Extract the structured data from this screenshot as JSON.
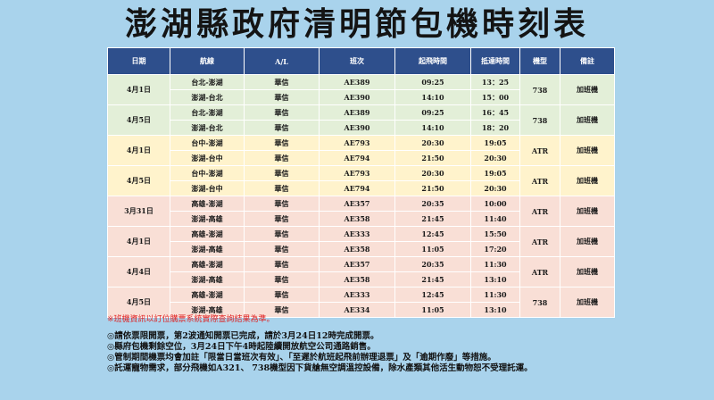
{
  "title": "澎湖縣政府清明節包機時刻表",
  "headers": [
    "日期",
    "航線",
    "A/L",
    "班次",
    "起飛時間",
    "抵達時間",
    "機型",
    "備註"
  ],
  "groups": [
    {
      "date": "4月1日",
      "type": "738",
      "remark": "加班機",
      "color": "green",
      "rows": [
        {
          "route": "台北-澎湖",
          "al": "華信",
          "flight": "AE389",
          "dep": "09:25",
          "arr": "13：25"
        },
        {
          "route": "澎湖-台北",
          "al": "華信",
          "flight": "AE390",
          "dep": "14:10",
          "arr": "15：00"
        }
      ]
    },
    {
      "date": "4月5日",
      "type": "738",
      "remark": "加班機",
      "color": "green",
      "rows": [
        {
          "route": "台北-澎湖",
          "al": "華信",
          "flight": "AE389",
          "dep": "09:25",
          "arr": "16：45"
        },
        {
          "route": "澎湖-台北",
          "al": "華信",
          "flight": "AE390",
          "dep": "14:10",
          "arr": "18：20"
        }
      ]
    },
    {
      "date": "4月1日",
      "type": "ATR",
      "remark": "加班機",
      "color": "yellow",
      "rows": [
        {
          "route": "台中-澎湖",
          "al": "華信",
          "flight": "AE793",
          "dep": "20:30",
          "arr": "19:05"
        },
        {
          "route": "澎湖-台中",
          "al": "華信",
          "flight": "AE794",
          "dep": "21:50",
          "arr": "20:30"
        }
      ]
    },
    {
      "date": "4月5日",
      "type": "ATR",
      "remark": "加班機",
      "color": "yellow",
      "rows": [
        {
          "route": "台中-澎湖",
          "al": "華信",
          "flight": "AE793",
          "dep": "20:30",
          "arr": "19:05"
        },
        {
          "route": "澎湖-台中",
          "al": "華信",
          "flight": "AE794",
          "dep": "21:50",
          "arr": "20:30"
        }
      ]
    },
    {
      "date": "3月31日",
      "type": "ATR",
      "remark": "加班機",
      "color": "pink",
      "rows": [
        {
          "route": "高雄-澎湖",
          "al": "華信",
          "flight": "AE357",
          "dep": "20:35",
          "arr": "10:00"
        },
        {
          "route": "澎湖-高雄",
          "al": "華信",
          "flight": "AE358",
          "dep": "21:45",
          "arr": "11:40"
        }
      ]
    },
    {
      "date": "4月1日",
      "type": "ATR",
      "remark": "加班機",
      "color": "pink",
      "rows": [
        {
          "route": "高雄-澎湖",
          "al": "華信",
          "flight": "AE333",
          "dep": "12:45",
          "arr": "15:50"
        },
        {
          "route": "澎湖-高雄",
          "al": "華信",
          "flight": "AE358",
          "dep": "11:05",
          "arr": "17:20"
        }
      ]
    },
    {
      "date": "4月4日",
      "type": "ATR",
      "remark": "加班機",
      "color": "pink",
      "rows": [
        {
          "route": "高雄-澎湖",
          "al": "華信",
          "flight": "AE357",
          "dep": "20:35",
          "arr": "11:30"
        },
        {
          "route": "澎湖-高雄",
          "al": "華信",
          "flight": "AE358",
          "dep": "21:45",
          "arr": "13:10"
        }
      ]
    },
    {
      "date": "4月5日",
      "type": "738",
      "remark": "加班機",
      "color": "pink",
      "rows": [
        {
          "route": "高雄-澎湖",
          "al": "華信",
          "flight": "AE333",
          "dep": "12:45",
          "arr": "11:30"
        },
        {
          "route": "澎湖-高雄",
          "al": "華信",
          "flight": "AE334",
          "dep": "11:05",
          "arr": "13:10"
        }
      ]
    }
  ],
  "red_note": "※班機資訊以訂位購票系統實際查詢結果為準。",
  "notes": [
    "◎請依票限開票，第2波通知開票已完成，請於3月24日12時完成開票。",
    "◎縣府包機剩餘空位，3月24日下午4時起陸續開放航空公司通路銷售。",
    "◎管制期間機票均會加註「限當日當班次有效」、「至遲於航班起飛前辦理退票」及「逾期作廢」等措施。",
    "◎託運寵物需求，部分飛機如A321、 738機型因下貨艙無空調溫控設備，除水產類其他活生動物恕不受理託運。"
  ]
}
